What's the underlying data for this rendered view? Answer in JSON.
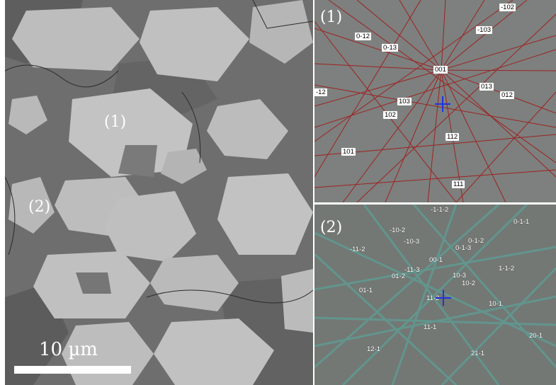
{
  "sem_panel": {
    "grain_labels": [
      "(1)",
      "(2)"
    ],
    "scale_bar_label": "10 µm"
  },
  "ebsd_pattern_1": {
    "label": "(1)",
    "line_color": "#a01818",
    "cross_color": "#1f33e0",
    "indices": [
      "-102",
      "-103",
      "0-12",
      "0-13",
      "001",
      "-12",
      "103",
      "013",
      "012",
      "102",
      "112",
      "101",
      "111"
    ]
  },
  "ebsd_pattern_2": {
    "label": "(2)",
    "line_color": "#3fa9a0",
    "cross_color": "#1f33e0",
    "indices": [
      "-1-1-2",
      "0-1-1",
      "-10-2",
      "0-1-2",
      "-10-3",
      "-11-2",
      "0-1-3",
      "00-1",
      "1-1-2",
      "-11-3",
      "01-2",
      "10-3",
      "10-2",
      "01-1",
      "11-2",
      "10-1",
      "11-1",
      "20-1",
      "12-1",
      "21-1"
    ]
  }
}
